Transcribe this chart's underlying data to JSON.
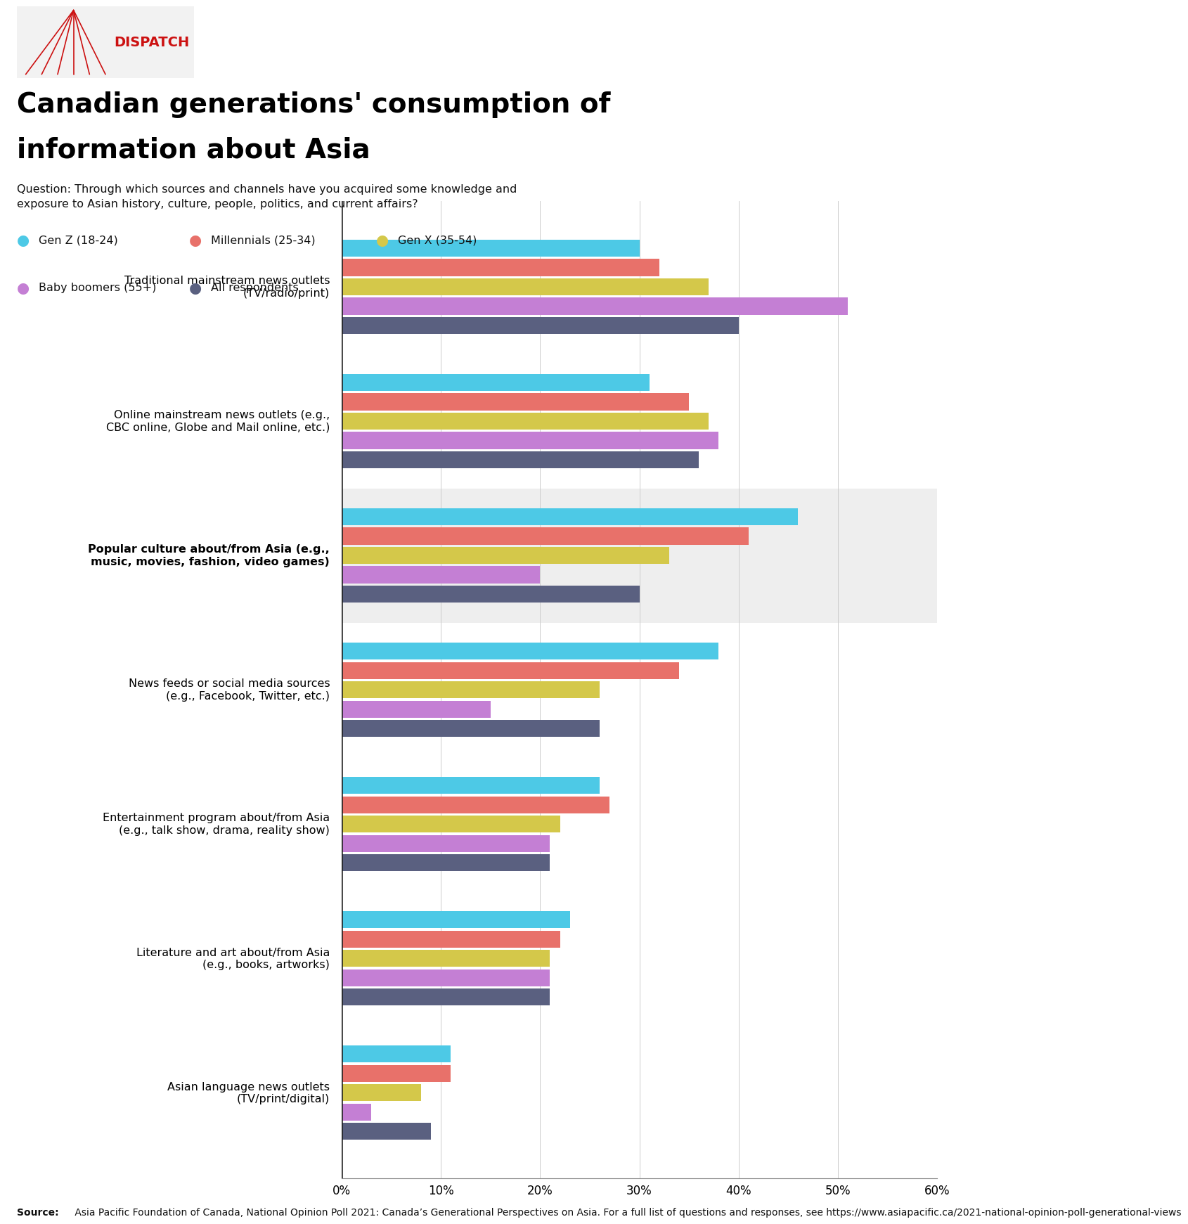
{
  "title_line1": "Canadian generations' consumption of",
  "title_line2": "information about Asia",
  "question": "Question: Through which sources and channels have you acquired some knowledge and\nexposure to Asian history, culture, people, politics, and current affairs?",
  "categories": [
    "Traditional mainstream news outlets\n(TV/radio/print)",
    "Online mainstream news outlets (e.g.,\nCBC online, Globe and Mail online, etc.)",
    "Popular culture about/from Asia (e.g.,\nmusic, movies, fashion, video games)",
    "News feeds or social media sources\n(e.g., Facebook, Twitter, etc.)",
    "Entertainment program about/from Asia\n(e.g., talk show, drama, reality show)",
    "Literature and art about/from Asia\n(e.g., books, artworks)",
    "Asian language news outlets\n(TV/print/digital)"
  ],
  "highlighted": [
    false,
    false,
    true,
    false,
    false,
    false,
    false
  ],
  "series_order": [
    "Gen Z (18-24)",
    "Millennials (25-34)",
    "Gen X (35-54)",
    "Baby boomers (55+)",
    "All respondents"
  ],
  "series": {
    "Gen Z (18-24)": {
      "color": "#4DC9E6",
      "values": [
        30,
        31,
        46,
        38,
        26,
        23,
        11
      ]
    },
    "Millennials (25-34)": {
      "color": "#E8716A",
      "values": [
        32,
        35,
        41,
        34,
        27,
        22,
        11
      ]
    },
    "Gen X (35-54)": {
      "color": "#D4C84A",
      "values": [
        37,
        37,
        33,
        26,
        22,
        21,
        8
      ]
    },
    "Baby boomers (55+)": {
      "color": "#C47FD4",
      "values": [
        51,
        38,
        20,
        15,
        21,
        21,
        3
      ]
    },
    "All respondents": {
      "color": "#5A6080",
      "values": [
        40,
        36,
        30,
        26,
        21,
        21,
        9
      ]
    }
  },
  "xlim": [
    0,
    60
  ],
  "xticks": [
    0,
    10,
    20,
    30,
    40,
    50,
    60
  ],
  "xtick_labels": [
    "0%",
    "10%",
    "20%",
    "30%",
    "40%",
    "50%",
    "60%"
  ],
  "background_color": "#FFFFFF",
  "highlight_color": "#EEEEEE",
  "source_bold": "Source:",
  "source_rest": " Asia Pacific Foundation of Canada, National Opinion Poll 2021: Canada’s Generational Perspectives on Asia. For a full list of questions and responses, see https://www.asiapacific.ca/2021-national-opinion-poll-generational-views"
}
